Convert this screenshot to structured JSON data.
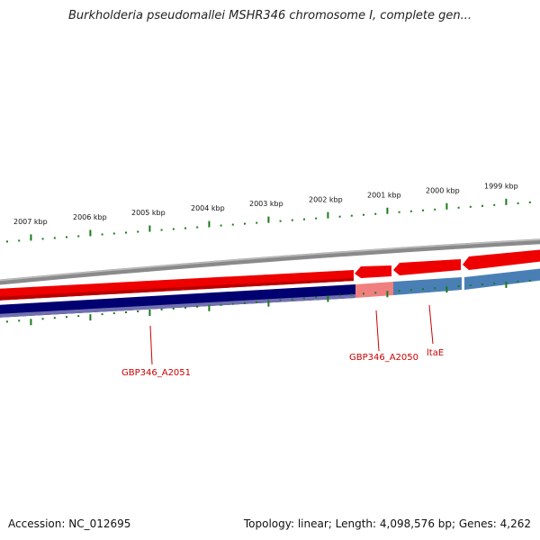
{
  "title": "Burkholderia pseudomallei MSHR346 chromosome I, complete gen...",
  "footer": {
    "accession": "Accession: NC_012695",
    "summary": "Topology: linear; Length: 4,098,576 bp; Genes: 4,262"
  },
  "colors": {
    "forward_gene": "#ee0000",
    "forward_gene_light": "#f08080",
    "reverse_gene": "#000070",
    "reverse_gene_light": "#4a7fb5",
    "backbone": "#888888",
    "tick": "#1a7a1a",
    "label": "#cc0000"
  },
  "chart_data": {
    "type": "genome_map",
    "scale_labels": [
      "2007 kbp",
      "2006 kbp",
      "2005 kbp",
      "2004 kbp",
      "2003 kbp",
      "2002 kbp",
      "2001 kbp",
      "2000 kbp",
      "1999 kbp"
    ],
    "features": [
      {
        "name": "GBP346_A2051",
        "highlight": false
      },
      {
        "name": "GBP346_A2050",
        "highlight": true
      },
      {
        "name": "ltaE",
        "highlight": true
      }
    ]
  }
}
